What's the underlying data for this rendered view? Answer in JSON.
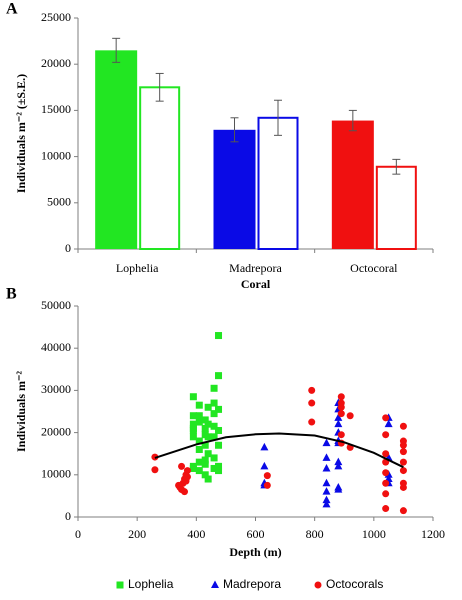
{
  "chart_data": [
    {
      "type": "bar",
      "panel_label": "A",
      "categories": [
        "Lophelia",
        "Madrepora",
        "Octocoral"
      ],
      "colors": [
        "#22e622",
        "#0a0ae6",
        "#f01010"
      ],
      "x_label": "Coral",
      "y_label": "Individuals m⁻² (±S.E.)",
      "series": [
        {
          "filled": true,
          "values": [
            21500,
            12900,
            13900
          ],
          "errors": [
            1300,
            1300,
            1100
          ]
        },
        {
          "filled": false,
          "values": [
            17500,
            14200,
            8900
          ],
          "errors": [
            1500,
            1900,
            800
          ]
        }
      ],
      "ylim": [
        0,
        25000
      ],
      "yticks": [
        0,
        5000,
        10000,
        15000,
        20000,
        25000
      ]
    },
    {
      "type": "scatter",
      "panel_label": "B",
      "x_label": "Depth (m)",
      "y_label": "Individuals m⁻²",
      "xlim": [
        0,
        1200
      ],
      "xticks": [
        0,
        200,
        400,
        600,
        800,
        1000,
        1200
      ],
      "ylim": [
        0,
        50000
      ],
      "yticks": [
        0,
        10000,
        20000,
        30000,
        40000,
        50000
      ],
      "legend": "bottom",
      "series": [
        {
          "name": "Lophelia",
          "color": "#22e622",
          "marker": "square",
          "x": [
            390,
            390,
            390,
            390,
            390,
            390,
            390,
            390,
            410,
            410,
            410,
            410,
            410,
            410,
            410,
            430,
            430,
            430,
            430,
            430,
            430,
            430,
            440,
            440,
            440,
            440,
            440,
            460,
            460,
            460,
            460,
            460,
            460,
            460,
            475,
            475,
            475,
            475,
            475,
            475,
            475
          ],
          "values": [
            22000,
            20500,
            19000,
            12000,
            28500,
            24000,
            21000,
            11500,
            26500,
            22500,
            18000,
            16000,
            13000,
            11000,
            24000,
            21000,
            19500,
            17000,
            13500,
            12500,
            23000,
            10000,
            9000,
            26000,
            19000,
            15000,
            22000,
            30500,
            24500,
            21500,
            19000,
            14000,
            11500,
            27000,
            43000,
            33500,
            25500,
            20500,
            17000,
            11000,
            12000
          ]
        },
        {
          "name": "Madrepora",
          "color": "#0a0ae6",
          "marker": "triangle",
          "x": [
            630,
            630,
            630,
            630,
            840,
            840,
            840,
            840,
            840,
            840,
            840,
            880,
            880,
            880,
            880,
            880,
            880,
            880,
            880,
            880,
            880,
            880,
            1050,
            1050,
            1050,
            1050,
            1050,
            1050
          ],
          "values": [
            16500,
            12000,
            8000,
            7500,
            17500,
            14000,
            11500,
            8000,
            6000,
            4000,
            3000,
            27000,
            25500,
            23500,
            22000,
            20000,
            18000,
            17500,
            13000,
            12000,
            7000,
            6500,
            23500,
            22000,
            14000,
            10000,
            9000,
            8000
          ]
        },
        {
          "name": "Octocorals",
          "color": "#f01010",
          "marker": "circle",
          "x": [
            260,
            260,
            340,
            345,
            350,
            355,
            360,
            365,
            370,
            350,
            360,
            365,
            370,
            640,
            640,
            790,
            790,
            790,
            890,
            890,
            890,
            890,
            890,
            890,
            920,
            920,
            1040,
            1040,
            1040,
            1040,
            1040,
            1040,
            1040,
            1040,
            1100,
            1100,
            1100,
            1100,
            1100,
            1100,
            1100,
            1100,
            1100
          ],
          "values": [
            14200,
            11200,
            7500,
            7000,
            6500,
            8000,
            9000,
            10000,
            11000,
            12000,
            6000,
            8500,
            9500,
            9800,
            7500,
            30000,
            27000,
            22500,
            28500,
            27000,
            26000,
            24500,
            19500,
            17500,
            24000,
            16500,
            23500,
            19500,
            15000,
            13000,
            10500,
            8000,
            5500,
            2000,
            21500,
            18000,
            17000,
            15500,
            13000,
            11000,
            8000,
            7000,
            1500
          ]
        }
      ],
      "trendline": {
        "color": "#000000",
        "x": [
          260,
          400,
          500,
          600,
          680,
          800,
          900,
          1000,
          1100
        ],
        "values": [
          14000,
          17200,
          18900,
          19600,
          19800,
          19300,
          17700,
          15200,
          11800
        ]
      }
    }
  ]
}
